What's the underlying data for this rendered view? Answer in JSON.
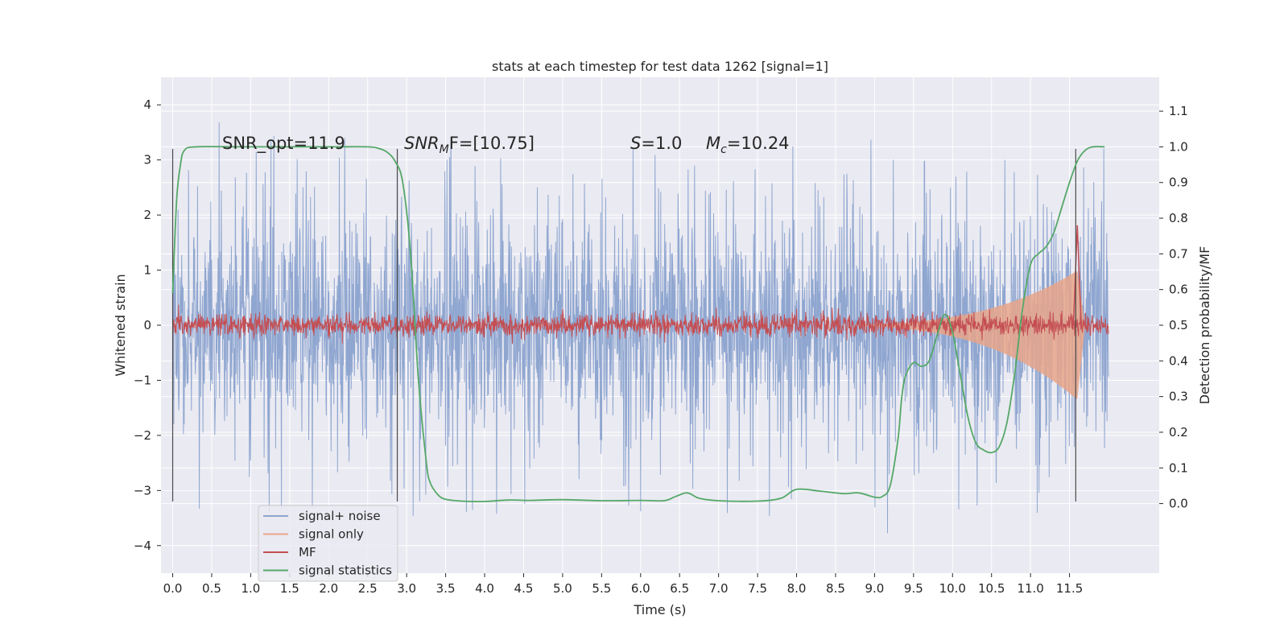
{
  "colors": {
    "plot_bg": "#EAEAF2",
    "grid": "#FFFFFF",
    "signal_noise": "#8FA6D0",
    "signal_only": "#E8A58A",
    "mf": "#C44E52",
    "signal_stats": "#55A868",
    "vline": "#4A4A4A",
    "text": "#262626"
  },
  "chart_data": {
    "type": "line",
    "title": "stats at each timestep for test data 1262 [signal=1]",
    "xlabel": "Time (s)",
    "ylabel_left": "Whitened strain",
    "ylabel_right": "Detection probability/MF",
    "xlim": [
      -0.15,
      12.65
    ],
    "ylim_left": [
      -4.5,
      4.5
    ],
    "ylim_right": [
      -0.195,
      1.195
    ],
    "xticks": [
      0.0,
      0.5,
      1.0,
      1.5,
      2.0,
      2.5,
      3.0,
      3.5,
      4.0,
      4.5,
      5.0,
      5.5,
      6.0,
      6.5,
      7.0,
      7.5,
      8.0,
      8.5,
      9.0,
      9.5,
      10.0,
      10.5,
      11.0,
      11.5
    ],
    "xtick_labels": [
      "0.0",
      "0.5",
      "1.0",
      "1.5",
      "2.0",
      "2.5",
      "3.0",
      "3.5",
      "4.0",
      "4.5",
      "5.0",
      "5.5",
      "6.0",
      "6.5",
      "7.0",
      "7.5",
      "8.0",
      "8.5",
      "9.0",
      "9.5",
      "10.0",
      "10.5",
      "11.0",
      "11.5"
    ],
    "yticks_left": [
      4,
      3,
      2,
      1,
      0,
      -1,
      -2,
      -3,
      -4
    ],
    "ytick_labels_left": [
      "4",
      "3",
      "2",
      "1",
      "0",
      "−1",
      "−2",
      "−3",
      "−4"
    ],
    "yticks_right": [
      1.1,
      1.0,
      0.9,
      0.8,
      0.7,
      0.6,
      0.5,
      0.4,
      0.3,
      0.2,
      0.1,
      0.0
    ],
    "ytick_labels_right": [
      "1.1",
      "1.0",
      "0.9",
      "0.8",
      "0.7",
      "0.6",
      "0.5",
      "0.4",
      "0.3",
      "0.2",
      "0.1",
      "0.0"
    ],
    "grid": true,
    "legend_position": "lower-left",
    "annotations": {
      "snr_opt": "SNR_opt=11.9",
      "snr_mf_prefix": "SNR",
      "snr_mf_sub": "M",
      "snr_mf_suffix": "F=[10.75]",
      "s_var": "S",
      "s_value": "=1.0",
      "mc_var": "M",
      "mc_sub": "c",
      "mc_value": "=10.24"
    },
    "vertical_markers_x": [
      0.0,
      2.88,
      11.58
    ],
    "series": [
      {
        "name": "signal+ noise",
        "kind": "noise",
        "axis": "left",
        "x_range": [
          0.0,
          12.0
        ],
        "envelope": 1.0,
        "spike_max": 4.1,
        "spike_min": -4.1
      },
      {
        "name": "signal only",
        "kind": "chirp",
        "axis": "left",
        "chirp_start": 8.0,
        "chirp_peak": 11.6,
        "chirp_peak_amplitude": 1.8,
        "x_end": 11.7
      },
      {
        "name": "MF",
        "kind": "mf",
        "axis": "right",
        "x_range": [
          0.0,
          12.0
        ],
        "baseline": 0.5,
        "band": 0.022,
        "peak_x": 11.6,
        "peak_value": 0.78
      },
      {
        "name": "signal statistics",
        "kind": "curve",
        "axis": "right",
        "x": [
          0.0,
          0.05,
          0.1,
          0.15,
          0.3,
          1.0,
          2.0,
          2.5,
          2.65,
          2.75,
          2.85,
          2.95,
          3.05,
          3.15,
          3.25,
          3.3,
          3.4,
          3.5,
          3.7,
          4.0,
          4.3,
          4.6,
          5.0,
          5.5,
          6.0,
          6.3,
          6.45,
          6.6,
          6.75,
          7.0,
          7.5,
          7.8,
          8.0,
          8.3,
          8.6,
          8.8,
          9.0,
          9.1,
          9.2,
          9.3,
          9.35,
          9.4,
          9.5,
          9.6,
          9.7,
          9.8,
          9.9,
          10.0,
          10.1,
          10.2,
          10.3,
          10.4,
          10.5,
          10.6,
          10.7,
          10.8,
          10.9,
          11.0,
          11.1,
          11.2,
          11.3,
          11.4,
          11.5,
          11.6,
          11.7,
          11.8,
          11.95
        ],
        "y": [
          0.59,
          0.85,
          0.95,
          0.99,
          1.0,
          1.0,
          1.0,
          1.0,
          0.995,
          0.985,
          0.96,
          0.9,
          0.7,
          0.35,
          0.12,
          0.06,
          0.025,
          0.012,
          0.007,
          0.006,
          0.01,
          0.009,
          0.011,
          0.008,
          0.009,
          0.008,
          0.02,
          0.03,
          0.015,
          0.008,
          0.007,
          0.015,
          0.04,
          0.035,
          0.028,
          0.03,
          0.018,
          0.02,
          0.05,
          0.18,
          0.3,
          0.36,
          0.395,
          0.385,
          0.4,
          0.47,
          0.53,
          0.48,
          0.36,
          0.24,
          0.17,
          0.15,
          0.143,
          0.16,
          0.23,
          0.37,
          0.55,
          0.67,
          0.7,
          0.72,
          0.76,
          0.83,
          0.9,
          0.96,
          0.99,
          1.0,
          1.0
        ]
      }
    ]
  }
}
